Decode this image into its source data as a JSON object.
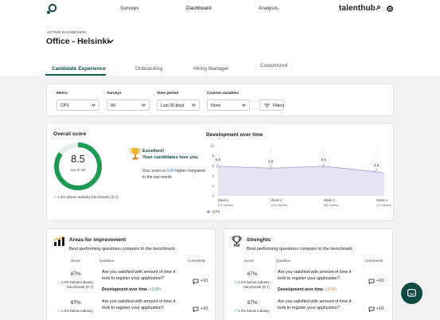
{
  "nav": {
    "links": [
      "Surveys",
      "Dashboard",
      "Analysis"
    ],
    "brand": "talenthub"
  },
  "header": {
    "sub_label": "ACTIVE DASHBOARD",
    "title": "Office - Helsinki"
  },
  "tabs": [
    "Candidate Experience",
    "Onboarding",
    "Hiring Manager",
    "Customized"
  ],
  "filters": {
    "metric": {
      "label": "Metric",
      "value": "CPS"
    },
    "surveys": {
      "label": "Surveys",
      "value": "All"
    },
    "period": {
      "label": "Time period",
      "value": "Last 30 days"
    },
    "custom": {
      "label": "Custom variables",
      "value": "None"
    },
    "button": "Filters"
  },
  "overall": {
    "title": "Overall score",
    "value": "8.5",
    "out_of": "out of 10",
    "fraction": 0.85,
    "bench_delta": "1.2%",
    "bench_text": "above industry benchmark (6.7)",
    "excellent": "Excellent!",
    "love": "Your candidates love you",
    "desc_pre": "Your score is ",
    "desc_hl": "0.05",
    "desc_post": " higher compared to the last month"
  },
  "chart_data": {
    "type": "area",
    "title": "Development over time",
    "categories": [
      "Week 1",
      "Week 2",
      "Week 3",
      "Week 4"
    ],
    "sublabels": [
      "(21 replies)",
      "(119 replies)",
      "(88 replies)",
      "(77 replies)"
    ],
    "series": [
      {
        "name": "CPS",
        "values": [
          5.9,
          5.5,
          5.9,
          4.8
        ]
      }
    ],
    "ylim": [
      0,
      10
    ],
    "yticks": [
      "10",
      "8",
      "6",
      "4",
      "2",
      "0"
    ],
    "legend": "bottom-left"
  },
  "improvement": {
    "title": "Areas for improvement",
    "desc": "Best performing questions compare to the benchmark",
    "cols": {
      "score": "Score",
      "question": "Question",
      "comments": "Comments"
    },
    "rows": [
      {
        "score": "67%",
        "delta": "1.2%",
        "bench1": "below industry",
        "bench2": "benchmark (6.7)",
        "question": "Are you satisfied with amount of time it took to register your application?",
        "dev_label": "Development over time",
        "dev_val": "0.8%",
        "comments": "+10"
      },
      {
        "score": "67%",
        "delta": "1.2%",
        "bench1": "below industry",
        "bench2": "",
        "question": "Are you satisfied with amount of time it took to register your application?",
        "comments": "+10"
      }
    ]
  },
  "strengths": {
    "title": "Strenghts",
    "desc": "Best performing questions compare to the benchmark",
    "cols": {
      "score": "Score",
      "question": "Question",
      "comments": "Comments"
    },
    "rows": [
      {
        "score": "67%",
        "delta": "1.2%",
        "bench1": "below industry",
        "bench2": "benchmark (6.7)",
        "question": "Are you satisfied with amount of time it took to register your application?",
        "dev_label": "Development over time",
        "dev_val": "0.8%",
        "comments": "+10"
      },
      {
        "score": "67%",
        "delta": "1.2%",
        "bench1": "below industry",
        "bench2": "",
        "question": "Are you satisfied with amount of time it took to register your application?",
        "comments": "+10"
      }
    ]
  },
  "colors": {
    "brand": "#0e4a44",
    "accent_green": "#2f9e5a",
    "ring_green": "#1f9a54",
    "series": "#a9a3d6"
  }
}
